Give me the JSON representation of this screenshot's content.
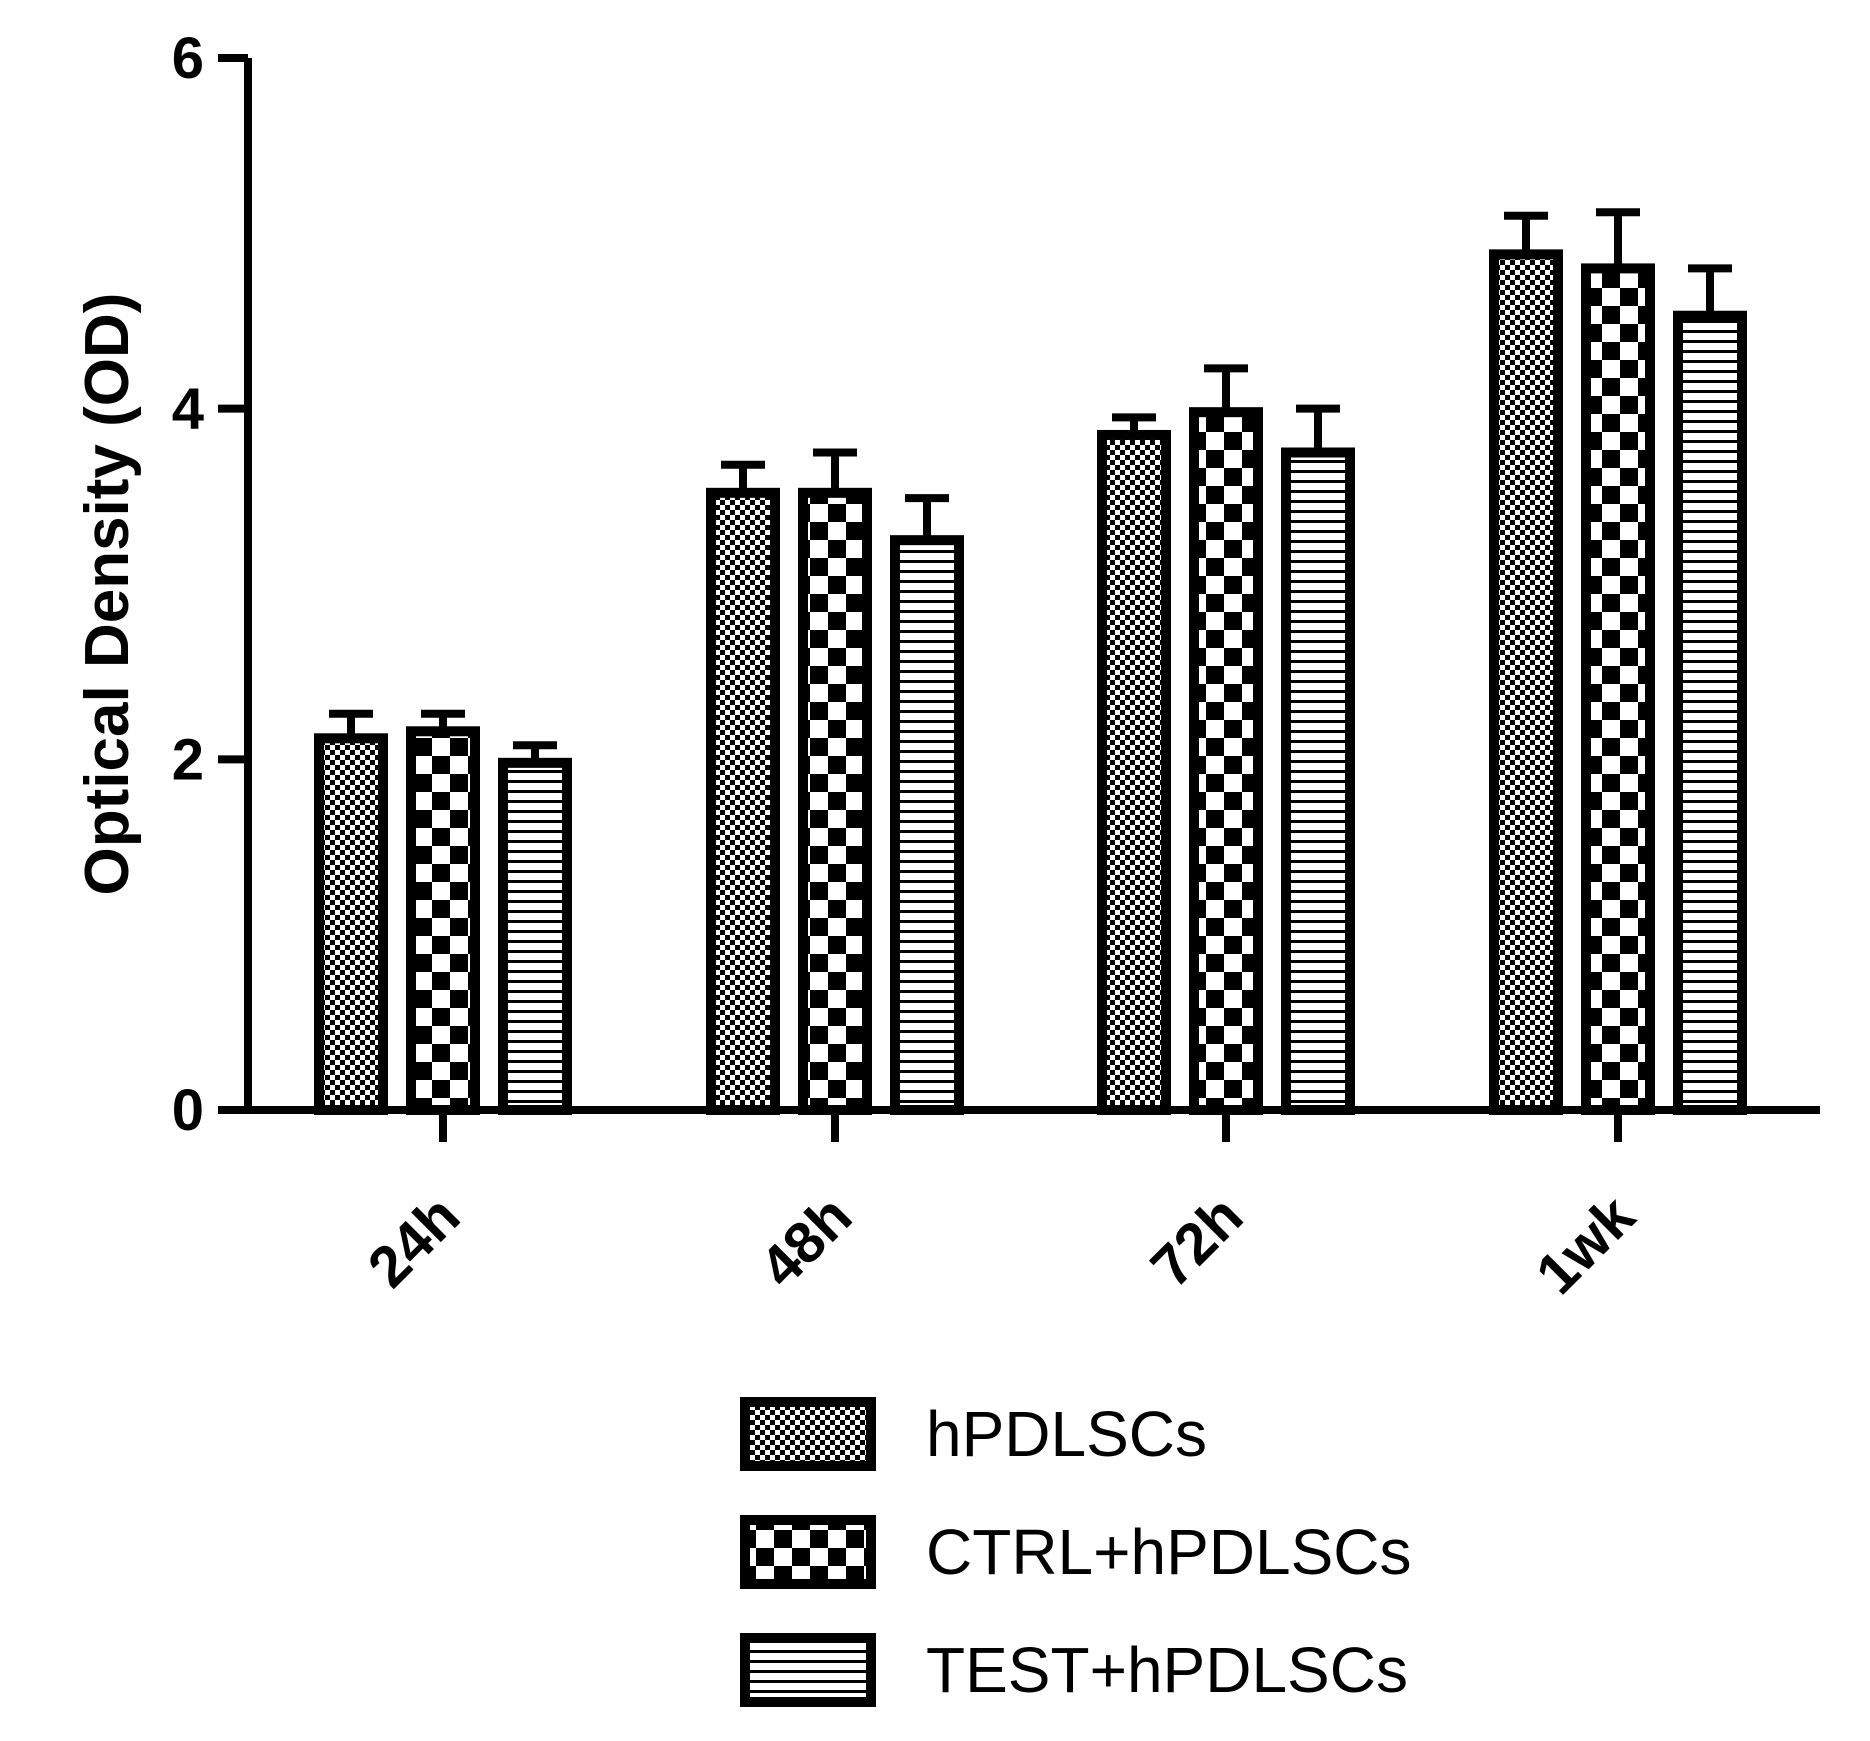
{
  "chart_data": {
    "type": "bar",
    "title": "",
    "xlabel": "",
    "ylabel": "Optical Density (OD)",
    "ylim": [
      0,
      6
    ],
    "yticks": [
      0,
      2,
      4,
      6
    ],
    "categories": [
      "24h",
      "48h",
      "72h",
      "1wk"
    ],
    "series": [
      {
        "name": "hPDLSCs",
        "pattern": "fine-checker",
        "values": [
          2.12,
          3.52,
          3.85,
          4.88
        ],
        "errors": [
          0.14,
          0.16,
          0.1,
          0.22
        ]
      },
      {
        "name": "CTRL+hPDLSCs",
        "pattern": "large-checker",
        "values": [
          2.16,
          3.52,
          3.98,
          4.8
        ],
        "errors": [
          0.1,
          0.23,
          0.25,
          0.32
        ]
      },
      {
        "name": "TEST+hPDLSCs",
        "pattern": "horizontal-stripes",
        "values": [
          1.98,
          3.25,
          3.75,
          4.53
        ],
        "errors": [
          0.1,
          0.24,
          0.25,
          0.27
        ]
      }
    ],
    "error_bars": "upper",
    "legend_position": "bottom-right",
    "grid": false,
    "colors": {
      "ink": "#000000",
      "background": "#ffffff"
    }
  }
}
